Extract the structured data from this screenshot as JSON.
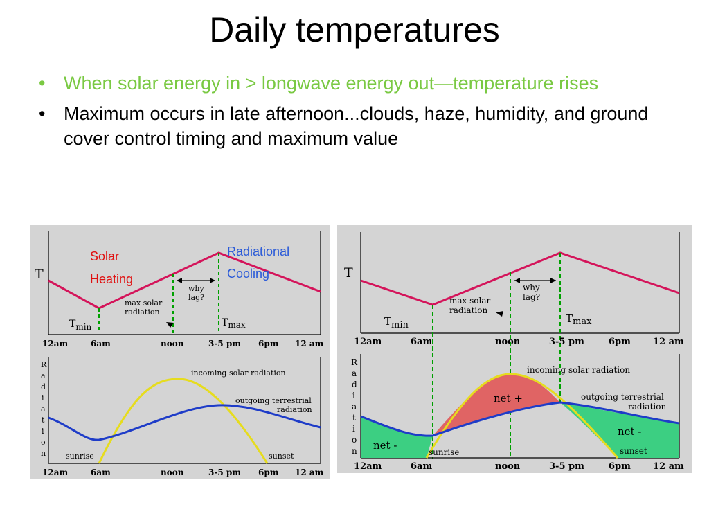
{
  "slide": {
    "title": "Daily temperatures",
    "bullets": [
      {
        "text": "When solar energy in > longwave energy out—temperature rises",
        "color": "#7ac943"
      },
      {
        "text": "Maximum occurs in late afternoon...clouds, haze, humidity, and ground cover control timing and maximum value",
        "color": "#000000"
      }
    ],
    "bullet_glyph": "•"
  },
  "left_figure": {
    "T": "T",
    "tmin_T": "T",
    "tmin_sub": "min",
    "tmax_T": "T",
    "tmax_sub": "max",
    "max_solar_1": "max solar",
    "max_solar_2": "radiation",
    "why_1": "why",
    "why_2": "lag?",
    "time_labels": [
      "12am",
      "6am",
      "noon",
      "3-5 pm",
      "6pm",
      "12 am"
    ],
    "radiation_letters": [
      "R",
      "a",
      "d",
      "i",
      "a",
      "t",
      "i",
      "o",
      "n"
    ],
    "incoming": "incoming solar radiation",
    "outgoing_1": "outgoing terrestrial",
    "outgoing_2": "radiation",
    "sunrise": "sunrise",
    "sunset": "sunset",
    "solar_heating_1": "Solar",
    "solar_heating_2": "Heating",
    "radiational_cooling_1": "Radiational",
    "radiational_cooling_2": "Cooling"
  },
  "right_figure": {
    "T": "T",
    "tmin_T": "T",
    "tmin_sub": "min",
    "tmax_T": "T",
    "tmax_sub": "max",
    "max_solar_1": "max solar",
    "max_solar_2": "radiation",
    "why_1": "why",
    "why_2": "lag?",
    "time_labels": [
      "12am",
      "6am",
      "noon",
      "3-5 pm",
      "6pm",
      "12 am"
    ],
    "radiation_letters": [
      "R",
      "a",
      "d",
      "i",
      "a",
      "t",
      "i",
      "o",
      "n"
    ],
    "incoming": "incoming solar radiation",
    "outgoing_1": "outgoing terrestrial",
    "outgoing_2": "radiation",
    "sunrise": "sunrise",
    "sunset": "sunset",
    "net_plus": "net +",
    "net_minus_left": "net -",
    "net_minus_right": "net -"
  },
  "colors": {
    "panel_bg": "#d4d4d4",
    "temperature_curve": "#d4145a",
    "solar_curve": "#e6dc1e",
    "terrestrial_curve": "#1e3cc8",
    "guide_lines": "#00a000",
    "net_positive": "#e06464",
    "net_negative": "#3ccf82",
    "solar_heating_text": "#e01010",
    "radiational_cooling_text": "#2a5ad8"
  }
}
